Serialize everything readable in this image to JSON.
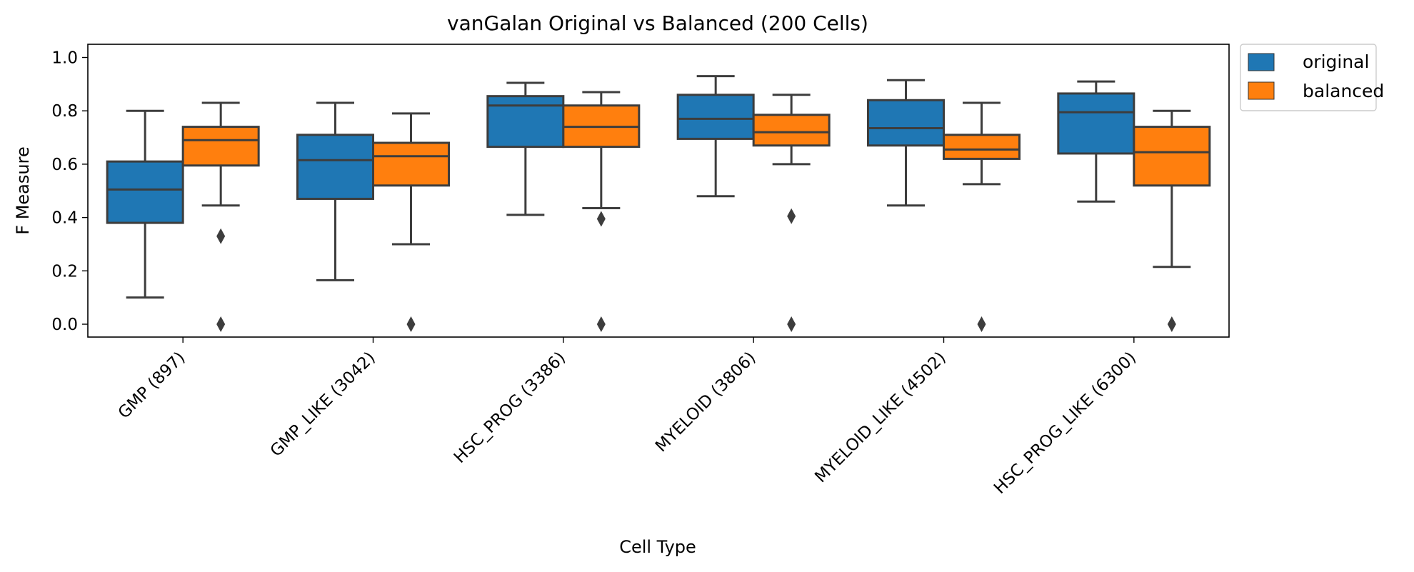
{
  "chart_data": {
    "type": "box",
    "title": "vanGalan Original vs Balanced (200 Cells)",
    "xlabel": "Cell Type",
    "ylabel": "F Measure",
    "ylim": [
      -0.05,
      1.05
    ],
    "yticks": [
      "0.0",
      "0.2",
      "0.4",
      "0.6",
      "0.8",
      "1.0"
    ],
    "grid": false,
    "legend_position": "outside-top-right",
    "categories": [
      "GMP (897)",
      "GMP_LIKE (3042)",
      "HSC_PROG (3386)",
      "MYELOID (3806)",
      "MYELOID_LIKE (4502)",
      "HSC_PROG_LIKE (6300)"
    ],
    "highlighted_category": "GMP (897)",
    "highlight_color": "#b22222",
    "series": [
      {
        "name": "original",
        "color": "#1f77b4",
        "boxes": [
          {
            "whisker_low": 0.1,
            "q1": 0.38,
            "median": 0.505,
            "q3": 0.61,
            "whisker_high": 0.8,
            "outliers": []
          },
          {
            "whisker_low": 0.165,
            "q1": 0.47,
            "median": 0.615,
            "q3": 0.71,
            "whisker_high": 0.83,
            "outliers": []
          },
          {
            "whisker_low": 0.41,
            "q1": 0.665,
            "median": 0.82,
            "q3": 0.855,
            "whisker_high": 0.905,
            "outliers": []
          },
          {
            "whisker_low": 0.48,
            "q1": 0.695,
            "median": 0.77,
            "q3": 0.86,
            "whisker_high": 0.93,
            "outliers": []
          },
          {
            "whisker_low": 0.445,
            "q1": 0.67,
            "median": 0.735,
            "q3": 0.84,
            "whisker_high": 0.915,
            "outliers": []
          },
          {
            "whisker_low": 0.46,
            "q1": 0.64,
            "median": 0.795,
            "q3": 0.865,
            "whisker_high": 0.91,
            "outliers": []
          }
        ]
      },
      {
        "name": "balanced",
        "color": "#ff7f0e",
        "boxes": [
          {
            "whisker_low": 0.445,
            "q1": 0.595,
            "median": 0.69,
            "q3": 0.74,
            "whisker_high": 0.83,
            "outliers": [
              0.33,
              0.0
            ]
          },
          {
            "whisker_low": 0.3,
            "q1": 0.52,
            "median": 0.63,
            "q3": 0.68,
            "whisker_high": 0.79,
            "outliers": [
              0.0
            ]
          },
          {
            "whisker_low": 0.435,
            "q1": 0.665,
            "median": 0.74,
            "q3": 0.82,
            "whisker_high": 0.87,
            "outliers": [
              0.395,
              0.0
            ]
          },
          {
            "whisker_low": 0.6,
            "q1": 0.67,
            "median": 0.72,
            "q3": 0.785,
            "whisker_high": 0.86,
            "outliers": [
              0.405,
              0.0
            ]
          },
          {
            "whisker_low": 0.525,
            "q1": 0.62,
            "median": 0.655,
            "q3": 0.71,
            "whisker_high": 0.83,
            "outliers": [
              0.0
            ]
          },
          {
            "whisker_low": 0.215,
            "q1": 0.52,
            "median": 0.645,
            "q3": 0.74,
            "whisker_high": 0.8,
            "outliers": [
              0.0
            ]
          }
        ]
      }
    ]
  }
}
